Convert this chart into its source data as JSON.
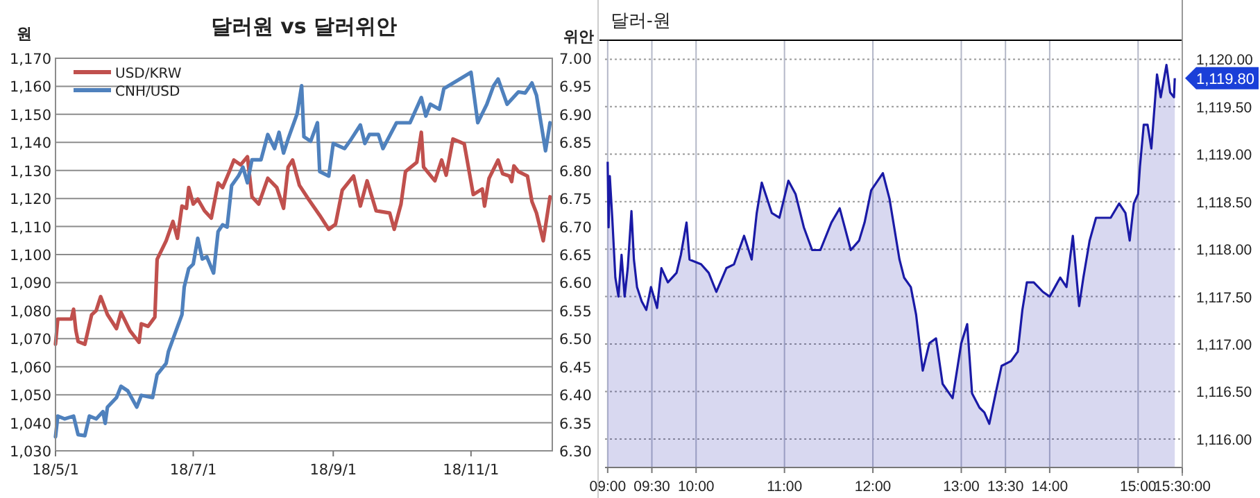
{
  "chart_data": [
    {
      "type": "line",
      "title": "달러원 vs 달러위안",
      "ylabel": "원",
      "y2label": "위안",
      "legend": "top left",
      "grid": "y",
      "xlim": [
        "--05-01",
        "--12-07"
      ],
      "xticks": [
        {
          "value": "--05-01",
          "label": "18/5/1"
        },
        {
          "value": "--07-01",
          "label": "18/7/1"
        },
        {
          "value": "--09-01",
          "label": "18/9/1"
        },
        {
          "value": "--11-01",
          "label": "18/11/1"
        }
      ],
      "ylim": [
        1030,
        1170
      ],
      "yticks": [
        {
          "value": 1030,
          "label": "1,030"
        },
        {
          "value": 1040,
          "label": "1,040"
        },
        {
          "value": 1050,
          "label": "1,050"
        },
        {
          "value": 1060,
          "label": "1,060"
        },
        {
          "value": 1070,
          "label": "1,070"
        },
        {
          "value": 1080,
          "label": "1,080"
        },
        {
          "value": 1090,
          "label": "1,090"
        },
        {
          "value": 1100,
          "label": "1,100"
        },
        {
          "value": 1110,
          "label": "1,110"
        },
        {
          "value": 1120,
          "label": "1,120"
        },
        {
          "value": 1130,
          "label": "1,130"
        },
        {
          "value": 1140,
          "label": "1,140"
        },
        {
          "value": 1150,
          "label": "1,150"
        },
        {
          "value": 1160,
          "label": "1,160"
        },
        {
          "value": 1170,
          "label": "1,170"
        }
      ],
      "y2lim": [
        6.3,
        7.0
      ],
      "y2ticks": [
        {
          "value": 6.3,
          "label": "6.30"
        },
        {
          "value": 6.35,
          "label": "6.35"
        },
        {
          "value": 6.4,
          "label": "6.40"
        },
        {
          "value": 6.45,
          "label": "6.45"
        },
        {
          "value": 6.5,
          "label": "6.50"
        },
        {
          "value": 6.55,
          "label": "6.55"
        },
        {
          "value": 6.6,
          "label": "6.60"
        },
        {
          "value": 6.65,
          "label": "6.65"
        },
        {
          "value": 6.7,
          "label": "6.70"
        },
        {
          "value": 6.75,
          "label": "6.75"
        },
        {
          "value": 6.8,
          "label": "6.80"
        },
        {
          "value": 6.85,
          "label": "6.85"
        },
        {
          "value": 6.9,
          "label": "6.90"
        },
        {
          "value": 6.95,
          "label": "6.95"
        },
        {
          "value": 7.0,
          "label": "7.00"
        }
      ],
      "series": [
        {
          "name": "USD/KRW",
          "color": "#c0504d",
          "x": [
            "--05-01",
            "--05-02",
            "--05-05",
            "--05-08",
            "--05-09",
            "--05-10",
            "--05-11",
            "--05-14",
            "--05-17",
            "--05-19",
            "--05-21",
            "--05-24",
            "--05-28",
            "--05-30",
            "--06-03",
            "--06-07",
            "--06-08",
            "--06-11",
            "--06-14",
            "--06-15",
            "--06-19",
            "--06-22",
            "--06-24",
            "--06-26",
            "--06-28",
            "--06-29",
            "--07-01",
            "--07-03",
            "--07-06",
            "--07-09",
            "--07-12",
            "--07-14",
            "--07-17",
            "--07-19",
            "--07-22",
            "--07-25",
            "--07-27",
            "--07-30",
            "--08-03",
            "--08-07",
            "--08-10",
            "--08-12",
            "--08-14",
            "--08-17",
            "--08-21",
            "--08-26",
            "--08-30",
            "--09-02",
            "--09-05",
            "--09-10",
            "--09-13",
            "--09-16",
            "--09-20",
            "--09-26",
            "--09-28",
            "--10-01",
            "--10-03",
            "--10-08",
            "--10-10",
            "--10-11",
            "--10-16",
            "--10-19",
            "--10-21",
            "--10-24",
            "--10-29",
            "--11-02",
            "--11-06",
            "--11-07",
            "--11-09",
            "--11-13",
            "--11-15",
            "--11-18",
            "--11-19",
            "--11-20",
            "--11-22",
            "--11-26",
            "--11-28",
            "--11-30",
            "--12-03",
            "--12-06"
          ],
          "values": [
            1068,
            1077,
            1077,
            1077,
            1080.5,
            1073,
            1069,
            1068,
            1078.5,
            1080,
            1085,
            1078.6,
            1073.6,
            1079.4,
            1072.8,
            1068.7,
            1075.3,
            1074.4,
            1077.7,
            1098.3,
            1104.9,
            1111.8,
            1105.8,
            1117.3,
            1116.5,
            1123.9,
            1118,
            1119.8,
            1115.6,
            1113,
            1125.5,
            1123.9,
            1129.6,
            1133.7,
            1132,
            1134.9,
            1120.6,
            1118,
            1127.2,
            1123.9,
            1116.5,
            1131.2,
            1133.7,
            1124.7,
            1119.8,
            1114,
            1109,
            1110.8,
            1123,
            1128,
            1117.3,
            1126.3,
            1115.6,
            1114.8,
            1109,
            1118,
            1129.6,
            1132.9,
            1143.6,
            1131.2,
            1126.3,
            1133.7,
            1128.3,
            1141.2,
            1139.5,
            1121.4,
            1123.4,
            1117.3,
            1127.2,
            1133.7,
            1128.8,
            1128,
            1126,
            1131.6,
            1129.6,
            1128,
            1118.9,
            1114.8,
            1104.9,
            1120.6
          ]
        },
        {
          "name": "CNH/USD",
          "color": "#4f81bd",
          "axis": "y2",
          "x": [
            "--05-01",
            "--05-02",
            "--05-05",
            "--05-09",
            "--05-11",
            "--05-14",
            "--05-16",
            "--05-19",
            "--05-22",
            "--05-23",
            "--05-24",
            "--05-28",
            "--05-30",
            "--06-02",
            "--06-06",
            "--06-08",
            "--06-13",
            "--06-15",
            "--06-19",
            "--06-20",
            "--06-23",
            "--06-26",
            "--06-27",
            "--06-29",
            "--07-01",
            "--07-03",
            "--07-05",
            "--07-07",
            "--07-10",
            "--07-12",
            "--07-14",
            "--07-16",
            "--07-18",
            "--07-21",
            "--07-23",
            "--07-25",
            "--07-27",
            "--07-31",
            "--08-03",
            "--08-06",
            "--08-08",
            "--08-10",
            "--08-12",
            "--08-16",
            "--08-18",
            "--08-19",
            "--08-22",
            "--08-25",
            "--08-26",
            "--08-30",
            "--09-01",
            "--09-06",
            "--09-09",
            "--09-13",
            "--09-15",
            "--09-17",
            "--09-21",
            "--09-23",
            "--09-29",
            "--10-05",
            "--10-10",
            "--10-12",
            "--10-14",
            "--10-18",
            "--10-20",
            "--11-01",
            "--11-04",
            "--11-08",
            "--11-11",
            "--11-13",
            "--11-17",
            "--11-22",
            "--11-25",
            "--11-28",
            "--11-30",
            "--12-04",
            "--12-06"
          ],
          "values": [
            6.325,
            6.362,
            6.357,
            6.362,
            6.329,
            6.327,
            6.362,
            6.357,
            6.37,
            6.349,
            6.378,
            6.395,
            6.415,
            6.407,
            6.378,
            6.399,
            6.395,
            6.436,
            6.456,
            6.477,
            6.51,
            6.543,
            6.592,
            6.625,
            6.633,
            6.679,
            6.642,
            6.646,
            6.617,
            6.691,
            6.703,
            6.699,
            6.773,
            6.79,
            6.806,
            6.778,
            6.819,
            6.819,
            6.864,
            6.839,
            6.868,
            6.831,
            6.856,
            6.901,
            6.951,
            6.86,
            6.852,
            6.885,
            6.798,
            6.79,
            6.848,
            6.839,
            6.856,
            6.881,
            6.848,
            6.864,
            6.864,
            6.839,
            6.885,
            6.885,
            6.93,
            6.897,
            6.918,
            6.909,
            6.946,
            6.975,
            6.885,
            6.918,
            6.951,
            6.963,
            6.918,
            6.94,
            6.938,
            6.956,
            6.934,
            6.835,
            6.885
          ]
        }
      ]
    },
    {
      "type": "area",
      "title": "달러-원",
      "grid": true,
      "xlim": [
        8.97,
        15.5
      ],
      "xticks": [
        {
          "value": 9,
          "label": "09:00"
        },
        {
          "value": 9.5,
          "label": "09:30"
        },
        {
          "value": 10,
          "label": "10:00"
        },
        {
          "value": 11,
          "label": "11:00"
        },
        {
          "value": 12,
          "label": "12:00"
        },
        {
          "value": 13,
          "label": "13:00"
        },
        {
          "value": 13.5,
          "label": "13:30"
        },
        {
          "value": 14,
          "label": "14:00"
        },
        {
          "value": 15,
          "label": "15:00"
        },
        {
          "value": 15.5,
          "label": "15:30:00"
        }
      ],
      "ylim": [
        1115.7,
        1120.2
      ],
      "yticks": [
        {
          "value": 1116,
          "label": "1,116.00"
        },
        {
          "value": 1116.5,
          "label": "1,116.50"
        },
        {
          "value": 1117,
          "label": "1,117.00"
        },
        {
          "value": 1117.5,
          "label": "1,117.50"
        },
        {
          "value": 1118,
          "label": "1,118.00"
        },
        {
          "value": 1118.5,
          "label": "1,118.50"
        },
        {
          "value": 1119,
          "label": "1,119.00"
        },
        {
          "value": 1119.5,
          "label": "1,119.50"
        },
        {
          "value": 1120,
          "label": "1,120.00"
        }
      ],
      "annotations": [
        "1,119.80"
      ],
      "series": [
        {
          "color": "#1a1aa6",
          "x": [
            9.0,
            9.01,
            9.024,
            9.052,
            9.087,
            9.122,
            9.157,
            9.192,
            9.227,
            9.269,
            9.297,
            9.332,
            9.385,
            9.437,
            9.49,
            9.559,
            9.608,
            9.681,
            9.779,
            9.828,
            9.892,
            9.926,
            10.057,
            10.143,
            10.229,
            10.343,
            10.429,
            10.543,
            10.629,
            10.686,
            10.743,
            10.857,
            10.943,
            11.044,
            11.125,
            11.219,
            11.313,
            11.406,
            11.531,
            11.625,
            11.75,
            11.844,
            11.906,
            11.981,
            12.113,
            12.188,
            12.301,
            12.353,
            12.429,
            12.489,
            12.564,
            12.639,
            12.714,
            12.789,
            12.902,
            13.0,
            13.067,
            13.122,
            13.206,
            13.261,
            13.317,
            13.4,
            13.456,
            13.562,
            13.639,
            13.691,
            13.742,
            13.82,
            13.923,
            14.0,
            14.119,
            14.19,
            14.262,
            14.333,
            14.381,
            14.452,
            14.524,
            14.595,
            14.69,
            14.786,
            14.857,
            14.905,
            14.952,
            15.0,
            15.021,
            15.064,
            15.107,
            15.15,
            15.214,
            15.256,
            15.321,
            15.363,
            15.406,
            15.415
          ],
          "values": [
            1118.92,
            1118.23,
            1118.77,
            1118.33,
            1117.7,
            1117.5,
            1117.94,
            1117.5,
            1117.8,
            1118.4,
            1117.89,
            1117.6,
            1117.45,
            1117.36,
            1117.6,
            1117.38,
            1117.8,
            1117.65,
            1117.75,
            1117.94,
            1118.28,
            1117.89,
            1117.84,
            1117.75,
            1117.55,
            1117.8,
            1117.84,
            1118.14,
            1117.89,
            1118.38,
            1118.7,
            1118.38,
            1118.33,
            1118.72,
            1118.58,
            1118.23,
            1117.99,
            1117.99,
            1118.28,
            1118.43,
            1117.99,
            1118.09,
            1118.28,
            1118.62,
            1118.8,
            1118.53,
            1117.89,
            1117.7,
            1117.6,
            1117.31,
            1116.72,
            1117.01,
            1117.06,
            1116.58,
            1116.43,
            1117.01,
            1117.21,
            1116.48,
            1116.33,
            1116.28,
            1116.16,
            1116.53,
            1116.77,
            1116.82,
            1116.92,
            1117.36,
            1117.65,
            1117.65,
            1117.55,
            1117.5,
            1117.7,
            1117.6,
            1118.14,
            1117.4,
            1117.7,
            1118.09,
            1118.33,
            1118.33,
            1118.33,
            1118.48,
            1118.38,
            1118.09,
            1118.48,
            1118.58,
            1118.87,
            1119.31,
            1119.31,
            1119.06,
            1119.84,
            1119.6,
            1119.94,
            1119.65,
            1119.6,
            1119.8
          ]
        }
      ]
    }
  ]
}
